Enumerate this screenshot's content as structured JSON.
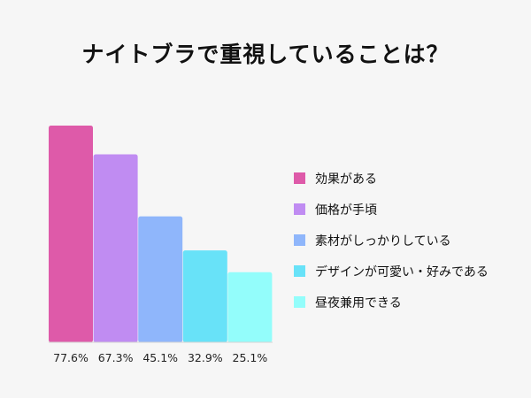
{
  "chart_data": {
    "type": "bar",
    "title": "ナイトブラで重視していることは？",
    "categories": [
      "効果がある",
      "価格が手頃",
      "素材がしっかりしている",
      "デザインが可愛い・好みである",
      "昼夜兼用できる"
    ],
    "values": [
      77.6,
      67.3,
      45.1,
      32.9,
      25.1
    ],
    "value_labels": [
      "77.6%",
      "67.3%",
      "45.1%",
      "32.9%",
      "25.1%"
    ],
    "colors": [
      "#de5aa9",
      "#c08cf2",
      "#8fb6fb",
      "#68e2f8",
      "#93fdfb"
    ],
    "ylim": [
      0,
      77.6
    ],
    "grid": false,
    "legend_position": "right",
    "xlabel": "",
    "ylabel": ""
  }
}
